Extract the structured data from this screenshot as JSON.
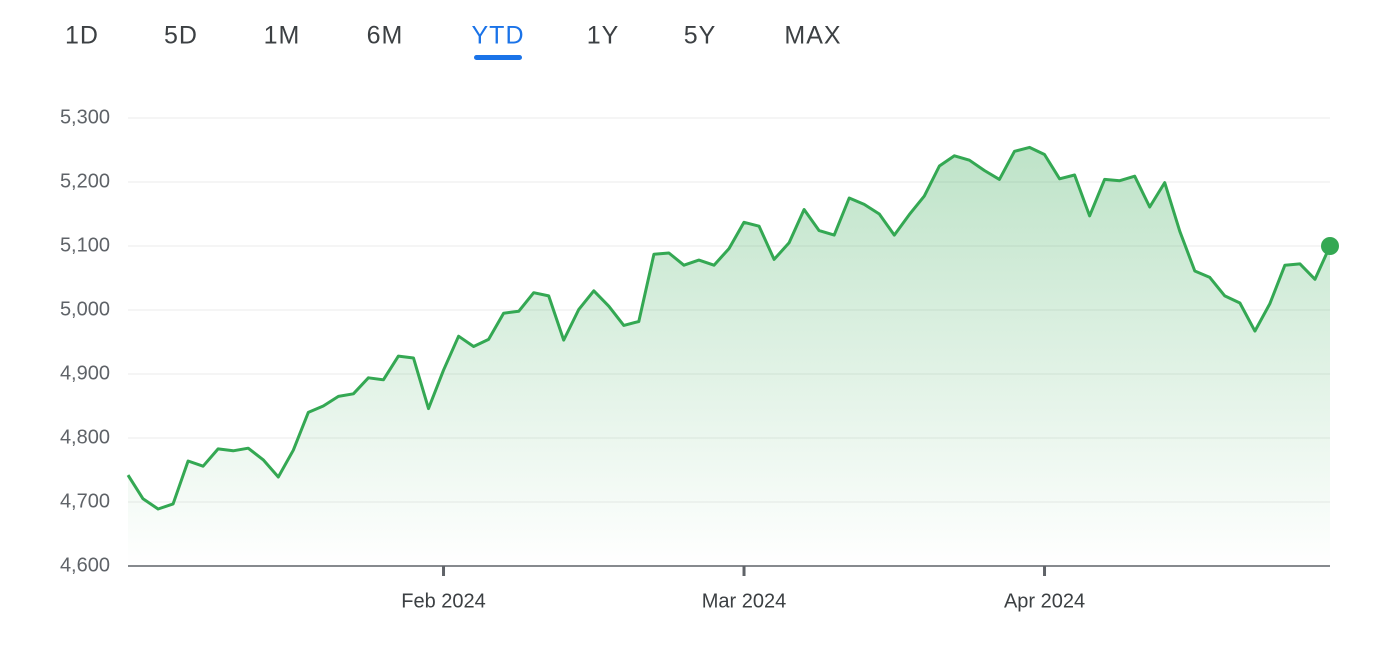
{
  "tabs": [
    "1D",
    "5D",
    "1M",
    "6M",
    "YTD",
    "1Y",
    "5Y",
    "MAX"
  ],
  "selected_tab": "YTD",
  "chart_data": {
    "type": "line",
    "values": [
      4742,
      4705,
      4689,
      4697,
      4764,
      4756,
      4783,
      4780,
      4784,
      4766,
      4739,
      4781,
      4840,
      4850,
      4865,
      4869,
      4894,
      4891,
      4928,
      4925,
      4846,
      4906,
      4959,
      4943,
      4954,
      4995,
      4998,
      5027,
      5022,
      4953,
      5001,
      5030,
      5006,
      4976,
      4982,
      5087,
      5089,
      5070,
      5078,
      5070,
      5096,
      5137,
      5131,
      5079,
      5105,
      5157,
      5124,
      5117,
      5175,
      5165,
      5150,
      5117,
      5149,
      5178,
      5225,
      5241,
      5234,
      5218,
      5204,
      5248,
      5254,
      5243,
      5205,
      5211,
      5147,
      5204,
      5202,
      5209,
      5161,
      5199,
      5123,
      5061,
      5051,
      5022,
      5011,
      4967,
      5010,
      5070,
      5072,
      5048,
      5100
    ],
    "color": "#34a853",
    "xlim": [
      0,
      80
    ],
    "xticks": [
      {
        "value": 21,
        "label": "Feb 2024"
      },
      {
        "value": 41,
        "label": "Mar 2024"
      },
      {
        "value": 61,
        "label": "Apr 2024"
      }
    ],
    "ylim": [
      4600,
      5300
    ],
    "yticks": [
      {
        "value": 4600,
        "label": "4,600"
      },
      {
        "value": 4700,
        "label": "4,700"
      },
      {
        "value": 4800,
        "label": "4,800"
      },
      {
        "value": 4900,
        "label": "4,900"
      },
      {
        "value": 5000,
        "label": "5,000"
      },
      {
        "value": 5100,
        "label": "5,100"
      },
      {
        "value": 5200,
        "label": "5,200"
      },
      {
        "value": 5300,
        "label": "5,300"
      }
    ],
    "grid": true
  }
}
